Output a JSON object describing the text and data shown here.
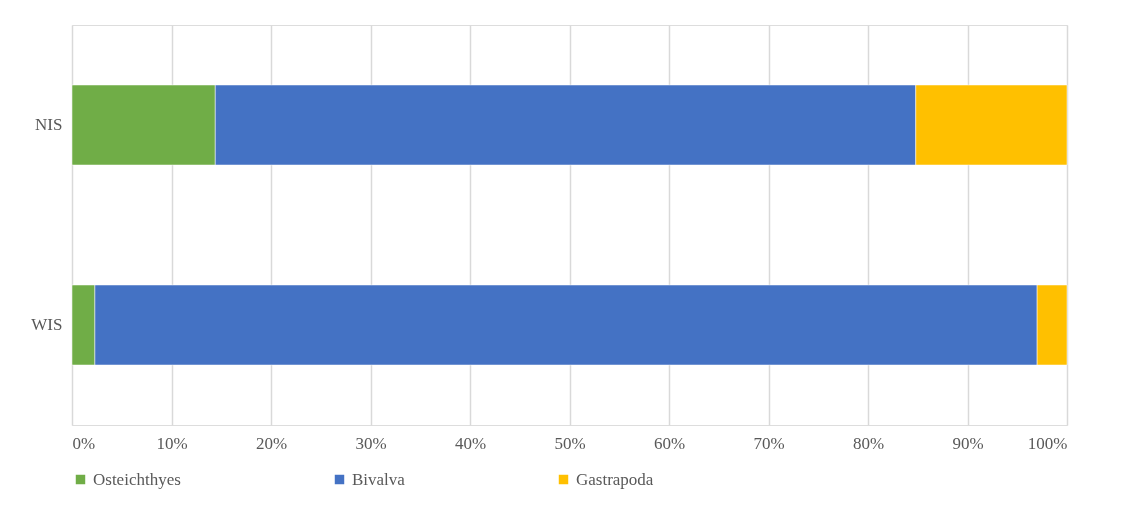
{
  "chart_data": {
    "type": "bar",
    "orientation": "horizontal",
    "stacked": true,
    "categories": [
      "NIS",
      "WIS"
    ],
    "series": [
      {
        "name": "Osteichthyes",
        "color": "#70ad47",
        "values": [
          14.4,
          2.3
        ]
      },
      {
        "name": "Bivalva",
        "color": "#4472c4",
        "values": [
          70.4,
          94.7
        ]
      },
      {
        "name": "Gastrapoda",
        "color": "#ffc000",
        "values": [
          15.2,
          3.0
        ]
      }
    ],
    "xlim": [
      0,
      100
    ],
    "xticks": [
      {
        "value": 0,
        "label": "0%"
      },
      {
        "value": 10,
        "label": "10%"
      },
      {
        "value": 20,
        "label": "20%"
      },
      {
        "value": 30,
        "label": "30%"
      },
      {
        "value": 40,
        "label": "40%"
      },
      {
        "value": 50,
        "label": "50%"
      },
      {
        "value": 60,
        "label": "60%"
      },
      {
        "value": 70,
        "label": "70%"
      },
      {
        "value": 80,
        "label": "80%"
      },
      {
        "value": 90,
        "label": "90%"
      },
      {
        "value": 100,
        "label": "100%"
      }
    ],
    "grid": "x",
    "legend": "bottom"
  }
}
